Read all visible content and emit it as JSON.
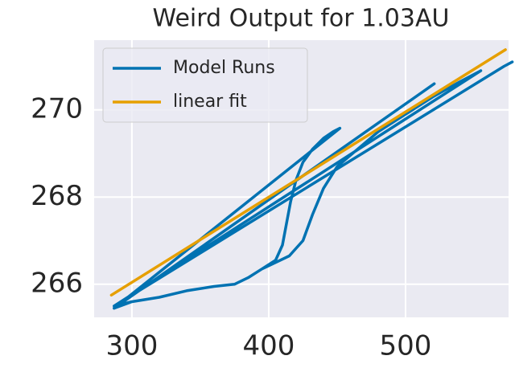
{
  "chart_data": {
    "type": "line",
    "title": "Weird Output for 1.03AU",
    "series": [
      {
        "name": "Model Runs",
        "color": "#0072b2",
        "x": [
          287,
          300,
          320,
          340,
          360,
          375,
          385,
          395,
          405,
          410,
          413,
          416,
          420,
          425,
          432,
          440,
          447,
          452,
          287,
          null,
          287,
          300,
          320,
          340,
          360,
          375,
          385,
          395,
          405,
          415,
          425,
          432,
          440,
          450,
          465,
          480,
          500,
          520,
          540,
          555,
          287,
          null,
          287,
          521,
          null,
          287,
          572,
          578
        ],
        "values": [
          265.45,
          265.6,
          265.7,
          265.85,
          265.95,
          266.0,
          266.15,
          266.35,
          266.55,
          266.9,
          267.4,
          267.9,
          268.4,
          268.8,
          269.1,
          269.35,
          269.5,
          269.58,
          265.45,
          null,
          265.5,
          265.6,
          265.7,
          265.85,
          265.95,
          266.0,
          266.15,
          266.35,
          266.5,
          266.65,
          267.0,
          267.6,
          268.2,
          268.7,
          269.1,
          269.5,
          269.9,
          270.3,
          270.65,
          270.9,
          265.5,
          null,
          265.45,
          270.6,
          null,
          265.5,
          271.0,
          271.1
        ]
      },
      {
        "name": "linear fit",
        "color": "#e69f00",
        "x": [
          285,
          573
        ],
        "values": [
          265.75,
          271.38
        ]
      }
    ],
    "xlim": [
      272.4,
      575.3
    ],
    "xticks": [
      300,
      400,
      500
    ],
    "ylim": [
      265.24,
      271.6
    ],
    "yticks": [
      266,
      268,
      270
    ],
    "grid": true,
    "legend": "upper-left"
  }
}
